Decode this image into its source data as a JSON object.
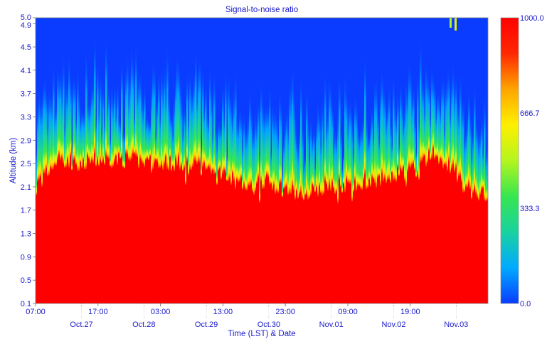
{
  "chart_data": {
    "type": "heatmap",
    "title": "Signal-to-noise ratio",
    "xlabel": "Time (LST) & Date",
    "ylabel": "Altitude (km)",
    "ylim": [
      0.1,
      5.0
    ],
    "y_ticks": [
      "0.1",
      "0.5",
      "0.9",
      "1.3",
      "1.7",
      "2.1",
      "2.5",
      "2.9",
      "3.3",
      "3.7",
      "4.1",
      "4.5",
      "4.9",
      "5.0"
    ],
    "x_time_ticks": [
      "07:00",
      "17:00",
      "03:00",
      "13:00",
      "23:00",
      "09:00",
      "19:00"
    ],
    "x_date_ticks": [
      "Oct.27",
      "Oct.28",
      "Oct.29",
      "Oct.30",
      "Nov.01",
      "Nov.02",
      "Nov.03"
    ],
    "colorbar": {
      "min": 0,
      "max": 1000,
      "ticks": [
        "0.0",
        "333.3",
        "666.7",
        "1000.0"
      ],
      "colors": [
        "#0a3cff",
        "#00aaff",
        "#19d2a0",
        "#37e650",
        "#b4f51e",
        "#fff000",
        "#ffa500",
        "#ff2800",
        "#ff0000"
      ]
    },
    "boundary_altitude_km": {
      "x_fraction": [
        0.0,
        0.05,
        0.1,
        0.15,
        0.2,
        0.25,
        0.3,
        0.35,
        0.4,
        0.45,
        0.48,
        0.5,
        0.55,
        0.58,
        0.6,
        0.65,
        0.7,
        0.75,
        0.8,
        0.85,
        0.88,
        0.9,
        0.93,
        0.95,
        0.98,
        1.0
      ],
      "altitude": [
        2.1,
        2.55,
        2.5,
        2.55,
        2.55,
        2.5,
        2.5,
        2.45,
        2.35,
        2.15,
        2.05,
        2.2,
        2.05,
        1.95,
        2.0,
        2.1,
        2.15,
        2.2,
        2.3,
        2.4,
        2.65,
        2.55,
        2.3,
        2.1,
        1.9,
        2.0
      ]
    }
  }
}
